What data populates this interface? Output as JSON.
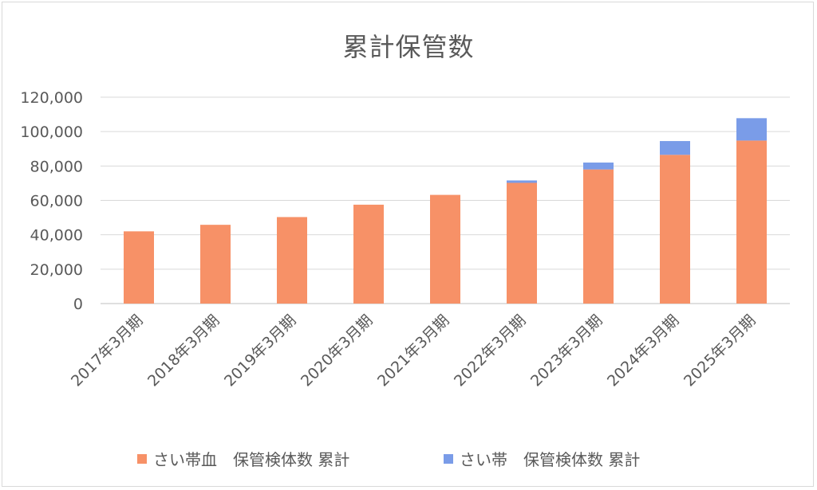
{
  "chart_data": {
    "type": "bar",
    "stacked": true,
    "title": "累計保管数",
    "categories": [
      "2017年3月期",
      "2018年3月期",
      "2019年3月期",
      "2020年3月期",
      "2021年3月期",
      "2022年3月期",
      "2023年3月期",
      "2024年3月期",
      "2025年3月期"
    ],
    "series": [
      {
        "name": "さい帯血　保管検体数 累計",
        "color": "#f79167",
        "values": [
          42000,
          45800,
          50300,
          57500,
          63200,
          70200,
          78000,
          86500,
          94800
        ]
      },
      {
        "name": "さい帯　保管検体数 累計",
        "color": "#7a9ce8",
        "values": [
          0,
          0,
          0,
          0,
          0,
          1400,
          4000,
          8000,
          13000
        ]
      }
    ],
    "ylim": [
      0,
      120000
    ],
    "yticks": [
      "0",
      "20,000",
      "40,000",
      "60,000",
      "80,000",
      "100,000",
      "120,000"
    ],
    "grid": true,
    "legend": "bottom"
  }
}
